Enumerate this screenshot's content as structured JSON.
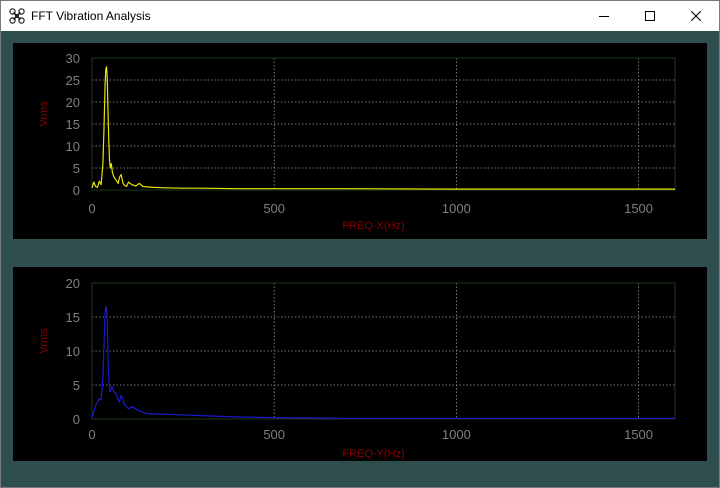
{
  "window": {
    "title": "FFT Vibration Analysis",
    "minimize_icon": "minimize-icon",
    "maximize_icon": "maximize-icon",
    "close_icon": "close-icon",
    "app_icon": "drone-icon"
  },
  "colors": {
    "background": "#2f4f4f",
    "plot_background": "#000000",
    "grid": "#9a9a9a",
    "tick_label": "#7f7f7f",
    "axis_label": "#8b0000",
    "series_x": "#e6e600",
    "series_y": "#1a1acc"
  },
  "chart_data": [
    {
      "type": "line",
      "xlabel": "FREQ-X(Hz)",
      "ylabel": "Vrms",
      "xlim": [
        0,
        1600
      ],
      "ylim": [
        0,
        30
      ],
      "xticks": [
        0,
        500,
        1000,
        1500
      ],
      "yticks": [
        0,
        5,
        10,
        15,
        20,
        25,
        30
      ],
      "grid": true,
      "grid_style": "dotted",
      "series": [
        {
          "color": "#e6e600",
          "x": [
            0,
            5,
            10,
            15,
            20,
            25,
            30,
            33,
            36,
            38,
            40,
            42,
            44,
            46,
            48,
            50,
            53,
            56,
            60,
            64,
            68,
            72,
            76,
            80,
            85,
            90,
            95,
            100,
            110,
            120,
            130,
            140,
            150,
            170,
            200,
            250,
            300,
            400,
            500,
            700,
            1000,
            1300,
            1600
          ],
          "y": [
            0.5,
            1.8,
            0.8,
            0.6,
            2.0,
            1.2,
            6.0,
            14.0,
            24.0,
            27.5,
            28.0,
            25.0,
            18.0,
            11.0,
            7.0,
            5.0,
            6.0,
            4.0,
            3.0,
            2.5,
            2.0,
            1.5,
            3.0,
            3.5,
            1.5,
            1.0,
            0.8,
            1.8,
            1.2,
            0.9,
            1.5,
            0.8,
            0.7,
            0.6,
            0.5,
            0.4,
            0.4,
            0.3,
            0.3,
            0.3,
            0.2,
            0.2,
            0.2
          ]
        }
      ]
    },
    {
      "type": "line",
      "xlabel": "FREQ-Y(Hz)",
      "ylabel": "Vrms",
      "xlim": [
        0,
        1600
      ],
      "ylim": [
        0,
        20
      ],
      "xticks": [
        0,
        500,
        1000,
        1500
      ],
      "yticks": [
        0,
        5,
        10,
        15,
        20
      ],
      "grid": true,
      "grid_style": "dotted",
      "series": [
        {
          "color": "#1a1acc",
          "x": [
            0,
            5,
            10,
            15,
            20,
            25,
            30,
            33,
            36,
            38,
            40,
            42,
            44,
            46,
            48,
            50,
            55,
            60,
            65,
            70,
            75,
            80,
            85,
            90,
            95,
            100,
            110,
            120,
            130,
            140,
            150,
            200,
            300,
            400,
            500,
            700,
            1000,
            1300,
            1600
          ],
          "y": [
            0.2,
            1.0,
            2.0,
            2.5,
            3.0,
            2.8,
            6.0,
            11.0,
            15.5,
            16.5,
            16.3,
            14.0,
            9.0,
            6.0,
            4.5,
            4.0,
            4.8,
            4.0,
            3.8,
            3.0,
            2.5,
            3.5,
            2.8,
            2.0,
            1.8,
            1.5,
            1.8,
            1.5,
            1.2,
            1.0,
            0.8,
            0.7,
            0.5,
            0.3,
            0.2,
            0.1,
            0.1,
            0.1,
            0.1
          ]
        }
      ]
    }
  ]
}
